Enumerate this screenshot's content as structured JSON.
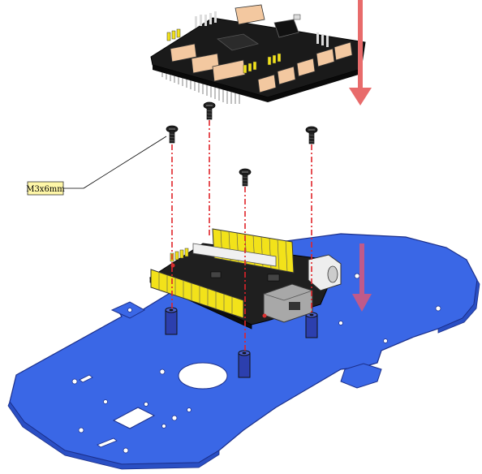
{
  "diagram": {
    "callout_label": "M3x6mm",
    "colors": {
      "chassis": "#3a67e6",
      "chassis_dark": "#2a4fc4",
      "arrow": "#e86b6b",
      "guide_line": "#e0242a",
      "header_yellow": "#f2e21a",
      "pcb": "#1a1a1a",
      "connector": "#f3c8a0",
      "standoff": "#2c3fae",
      "label_bg": "#fff7a8"
    },
    "icons": [
      "screw-icon",
      "down-arrow-icon"
    ]
  }
}
